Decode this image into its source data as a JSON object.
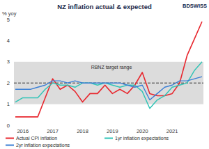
{
  "chart_data": {
    "type": "line",
    "title": "NZ inflation actual & expected",
    "logo": "BDSWISS",
    "y_label": "% yoy",
    "annotation": "RBNZ target range",
    "target_range": [
      1,
      3
    ],
    "target": 2,
    "categories": [
      null,
      "2016",
      null,
      null,
      null,
      "2017",
      null,
      null,
      null,
      "2018",
      null,
      null,
      null,
      "2019",
      null,
      null,
      null,
      "2020",
      null,
      null,
      null,
      "2021",
      null,
      null,
      null,
      null
    ],
    "series": [
      {
        "name": "Actual CPI inflation",
        "color": "#e8282f",
        "values": [
          0.4,
          0.4,
          0.4,
          0.4,
          1.3,
          2.2,
          1.7,
          1.9,
          1.6,
          1.1,
          1.5,
          1.5,
          1.9,
          1.5,
          1.7,
          1.5,
          1.9,
          2.5,
          1.5,
          1.4,
          1.4,
          1.5,
          2.0,
          3.3,
          4.1,
          4.9
        ]
      },
      {
        "name": "1yr inflation expectations",
        "color": "#2ec4b6",
        "values": [
          1.1,
          1.3,
          1.3,
          1.3,
          1.7,
          2.0,
          1.9,
          1.9,
          1.8,
          2.0,
          2.0,
          1.9,
          2.0,
          1.9,
          1.8,
          1.9,
          1.9,
          1.6,
          0.8,
          1.2,
          1.4,
          1.8,
          1.9,
          2.0,
          2.6,
          3.0
        ]
      },
      {
        "name": "2yr inflation expectations",
        "color": "#3a7fd5",
        "values": [
          1.7,
          1.7,
          1.7,
          1.8,
          1.9,
          2.1,
          2.1,
          2.0,
          2.1,
          2.0,
          2.0,
          2.0,
          2.0,
          2.0,
          2.0,
          1.9,
          1.8,
          1.9,
          1.2,
          1.5,
          1.8,
          1.9,
          2.1,
          2.1,
          2.2,
          2.3
        ]
      }
    ],
    "ylim": [
      0,
      5
    ],
    "yticks": [
      0,
      1,
      2,
      3,
      4,
      5
    ],
    "grid": false,
    "legend": "bottom"
  }
}
